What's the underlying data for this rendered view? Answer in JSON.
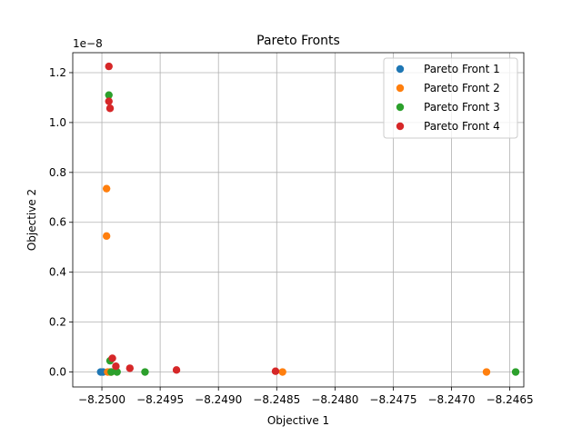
{
  "chart_data": {
    "type": "scatter",
    "title": "Pareto Fronts",
    "xlabel": "Objective 1",
    "ylabel": "Objective 2",
    "y_multiplier_label": "1e−8",
    "xlim": [
      -8.25025,
      -8.24638
    ],
    "ylim": [
      -0.06,
      1.28
    ],
    "x_ticks": [
      -8.25,
      -8.2495,
      -8.249,
      -8.2485,
      -8.248,
      -8.2475,
      -8.247,
      -8.2465
    ],
    "x_tick_labels": [
      "−8.2500",
      "−8.2495",
      "−8.2490",
      "−8.2485",
      "−8.2480",
      "−8.2475",
      "−8.2470",
      "−8.2465"
    ],
    "y_ticks": [
      0.0,
      0.2,
      0.4,
      0.6,
      0.8,
      1.0,
      1.2
    ],
    "y_tick_labels": [
      "0.0",
      "0.2",
      "0.4",
      "0.6",
      "0.8",
      "1.0",
      "1.2"
    ],
    "grid": true,
    "legend_position": "top-right",
    "series": [
      {
        "name": "Pareto Front 1",
        "color": "#1f77b4",
        "points": [
          [
            -8.25001,
            0.0
          ],
          [
            -8.24999,
            0.0
          ]
        ]
      },
      {
        "name": "Pareto Front 2",
        "color": "#ff7f0e",
        "points": [
          [
            -8.24996,
            0.735
          ],
          [
            -8.24996,
            0.545
          ],
          [
            -8.24995,
            0.0
          ],
          [
            -8.24993,
            0.0
          ],
          [
            -8.24992,
            0.0
          ],
          [
            -8.24845,
            0.0
          ],
          [
            -8.2467,
            0.0
          ]
        ]
      },
      {
        "name": "Pareto Front 3",
        "color": "#2ca02c",
        "points": [
          [
            -8.24994,
            1.11
          ],
          [
            -8.24993,
            0.045
          ],
          [
            -8.24992,
            0.0
          ],
          [
            -8.24987,
            0.0
          ],
          [
            -8.24963,
            0.0
          ],
          [
            -8.24645,
            0.0
          ]
        ]
      },
      {
        "name": "Pareto Front 4",
        "color": "#d62728",
        "points": [
          [
            -8.24994,
            1.225
          ],
          [
            -8.24994,
            1.085
          ],
          [
            -8.24993,
            1.057
          ],
          [
            -8.24991,
            0.055
          ],
          [
            -8.24988,
            0.023
          ],
          [
            -8.24976,
            0.015
          ],
          [
            -8.24936,
            0.008
          ],
          [
            -8.24851,
            0.003
          ]
        ]
      }
    ]
  }
}
